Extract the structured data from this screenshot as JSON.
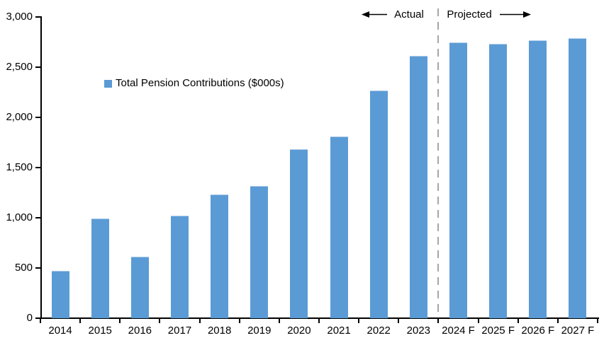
{
  "figure": {
    "background": "#FFFFFF",
    "axis_color": "#000000",
    "text_color": "#000000"
  },
  "annotations": {
    "actual_label": "Actual",
    "projected_label": "Projected"
  },
  "legend": {
    "label": "Total Pension Contributions ($000s)",
    "swatch_color": "#5B9BD5"
  },
  "chart_data": {
    "type": "bar",
    "title": "",
    "xlabel": "",
    "ylabel": "",
    "categories": [
      "2014",
      "2015",
      "2016",
      "2017",
      "2018",
      "2019",
      "2020",
      "2021",
      "2022",
      "2023",
      "2024 F",
      "2025 F",
      "2026 F",
      "2027 F"
    ],
    "values": [
      470,
      990,
      610,
      1020,
      1230,
      1320,
      1680,
      1810,
      2270,
      2610,
      2750,
      2735,
      2770,
      2790
    ],
    "series": [
      {
        "name": "Total Pension Contributions ($000s)",
        "color": "#5B9BD5"
      }
    ],
    "ylim": [
      0,
      3000
    ],
    "ytick_interval": 500,
    "ytick_labels": [
      "0",
      "500",
      "1,000",
      "1,500",
      "2,000",
      "2,500",
      "3,000"
    ],
    "grid": false,
    "legend_position": "inside-top-left",
    "divider": {
      "after_category": "2023",
      "style": "dashed",
      "color": "#A6A6A6",
      "left_label": "Actual",
      "right_label": "Projected"
    }
  }
}
